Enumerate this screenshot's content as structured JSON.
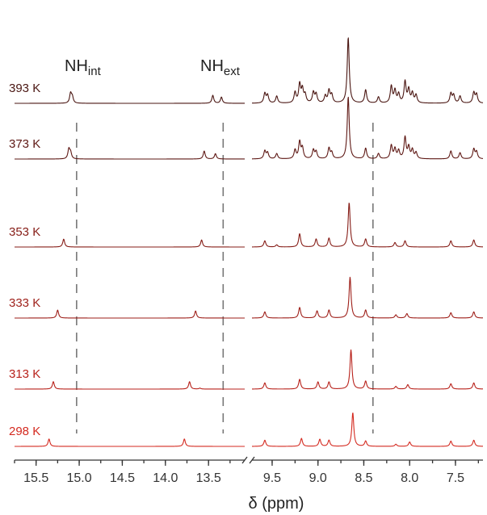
{
  "chart_data": {
    "type": "line",
    "title": "",
    "xlabel": "δ (ppm)",
    "ylabel": "",
    "x_reversed": true,
    "axis_break": true,
    "x_left_range": [
      15.75,
      13.08
    ],
    "x_right_range": [
      9.72,
      7.2
    ],
    "x_ticks_left": [
      "15.5",
      "15.0",
      "14.5",
      "14.0",
      "13.5"
    ],
    "x_ticks_right": [
      "9.5",
      "9.0",
      "8.5",
      "8.0",
      "7.5"
    ],
    "grid": false,
    "annotations": [
      {
        "main": "NH",
        "sub": "int",
        "dashed_at": 15.03
      },
      {
        "main": "NH",
        "sub": "ext",
        "dashed_at": 13.33
      },
      {
        "dashed_at": 8.4
      }
    ],
    "series": [
      {
        "name": "393 K",
        "color": "#4a1612",
        "peaks": [
          [
            15.1,
            0.55
          ],
          [
            15.08,
            0.35
          ],
          [
            13.45,
            0.45
          ],
          [
            13.35,
            0.35
          ],
          [
            9.58,
            0.55
          ],
          [
            9.55,
            0.45
          ],
          [
            9.45,
            0.4
          ],
          [
            9.25,
            0.6
          ],
          [
            9.2,
            1.05
          ],
          [
            9.17,
            0.75
          ],
          [
            9.14,
            0.45
          ],
          [
            9.05,
            0.6
          ],
          [
            9.02,
            0.5
          ],
          [
            8.92,
            0.4
          ],
          [
            8.88,
            0.7
          ],
          [
            8.85,
            0.45
          ],
          [
            8.67,
            3.7
          ],
          [
            8.48,
            0.75
          ],
          [
            8.34,
            0.35
          ],
          [
            8.2,
            0.95
          ],
          [
            8.16,
            0.7
          ],
          [
            8.12,
            0.5
          ],
          [
            8.05,
            1.2
          ],
          [
            8.01,
            0.75
          ],
          [
            7.97,
            0.55
          ],
          [
            7.93,
            0.45
          ],
          [
            7.55,
            0.55
          ],
          [
            7.52,
            0.45
          ],
          [
            7.45,
            0.4
          ],
          [
            7.3,
            0.6
          ],
          [
            7.27,
            0.5
          ]
        ]
      },
      {
        "name": "373 K",
        "color": "#5e1814",
        "peaks": [
          [
            15.12,
            0.55
          ],
          [
            15.1,
            0.35
          ],
          [
            13.55,
            0.45
          ],
          [
            13.42,
            0.3
          ],
          [
            9.58,
            0.45
          ],
          [
            9.55,
            0.35
          ],
          [
            9.45,
            0.3
          ],
          [
            9.25,
            0.5
          ],
          [
            9.2,
            0.95
          ],
          [
            9.17,
            0.6
          ],
          [
            9.05,
            0.5
          ],
          [
            9.02,
            0.4
          ],
          [
            8.88,
            0.6
          ],
          [
            8.85,
            0.35
          ],
          [
            8.67,
            3.5
          ],
          [
            8.48,
            0.6
          ],
          [
            8.34,
            0.3
          ],
          [
            8.2,
            0.75
          ],
          [
            8.16,
            0.55
          ],
          [
            8.12,
            0.45
          ],
          [
            8.05,
            1.2
          ],
          [
            8.01,
            0.65
          ],
          [
            7.97,
            0.5
          ],
          [
            7.93,
            0.35
          ],
          [
            7.55,
            0.45
          ],
          [
            7.45,
            0.35
          ],
          [
            7.3,
            0.55
          ],
          [
            7.27,
            0.4
          ]
        ]
      },
      {
        "name": "353 K",
        "color": "#861d17",
        "peaks": [
          [
            15.18,
            0.45
          ],
          [
            13.58,
            0.4
          ],
          [
            9.58,
            0.35
          ],
          [
            9.45,
            0.12
          ],
          [
            9.2,
            0.75
          ],
          [
            9.02,
            0.45
          ],
          [
            8.88,
            0.5
          ],
          [
            8.66,
            2.5
          ],
          [
            8.48,
            0.45
          ],
          [
            8.16,
            0.25
          ],
          [
            8.05,
            0.35
          ],
          [
            7.55,
            0.35
          ],
          [
            7.3,
            0.4
          ]
        ]
      },
      {
        "name": "333 K",
        "color": "#9e1f19",
        "peaks": [
          [
            15.25,
            0.45
          ],
          [
            13.65,
            0.4
          ],
          [
            9.58,
            0.35
          ],
          [
            9.2,
            0.6
          ],
          [
            9.01,
            0.4
          ],
          [
            8.88,
            0.45
          ],
          [
            8.65,
            2.3
          ],
          [
            8.48,
            0.45
          ],
          [
            8.15,
            0.18
          ],
          [
            8.03,
            0.25
          ],
          [
            7.55,
            0.3
          ],
          [
            7.3,
            0.35
          ]
        ]
      },
      {
        "name": "313 K",
        "color": "#b8221b",
        "peaks": [
          [
            15.3,
            0.42
          ],
          [
            13.72,
            0.42
          ],
          [
            13.6,
            0.05
          ],
          [
            9.58,
            0.35
          ],
          [
            9.2,
            0.55
          ],
          [
            9.0,
            0.4
          ],
          [
            8.88,
            0.4
          ],
          [
            8.64,
            2.2
          ],
          [
            8.48,
            0.45
          ],
          [
            8.15,
            0.15
          ],
          [
            8.02,
            0.25
          ],
          [
            7.55,
            0.3
          ],
          [
            7.3,
            0.35
          ]
        ]
      },
      {
        "name": "298 K",
        "color": "#d42a20",
        "peaks": [
          [
            15.35,
            0.42
          ],
          [
            13.78,
            0.42
          ],
          [
            9.58,
            0.35
          ],
          [
            9.18,
            0.45
          ],
          [
            8.98,
            0.4
          ],
          [
            8.88,
            0.35
          ],
          [
            8.62,
            1.9
          ],
          [
            8.48,
            0.3
          ],
          [
            8.15,
            0.12
          ],
          [
            8.0,
            0.25
          ],
          [
            7.55,
            0.3
          ],
          [
            7.3,
            0.35
          ]
        ]
      }
    ]
  }
}
